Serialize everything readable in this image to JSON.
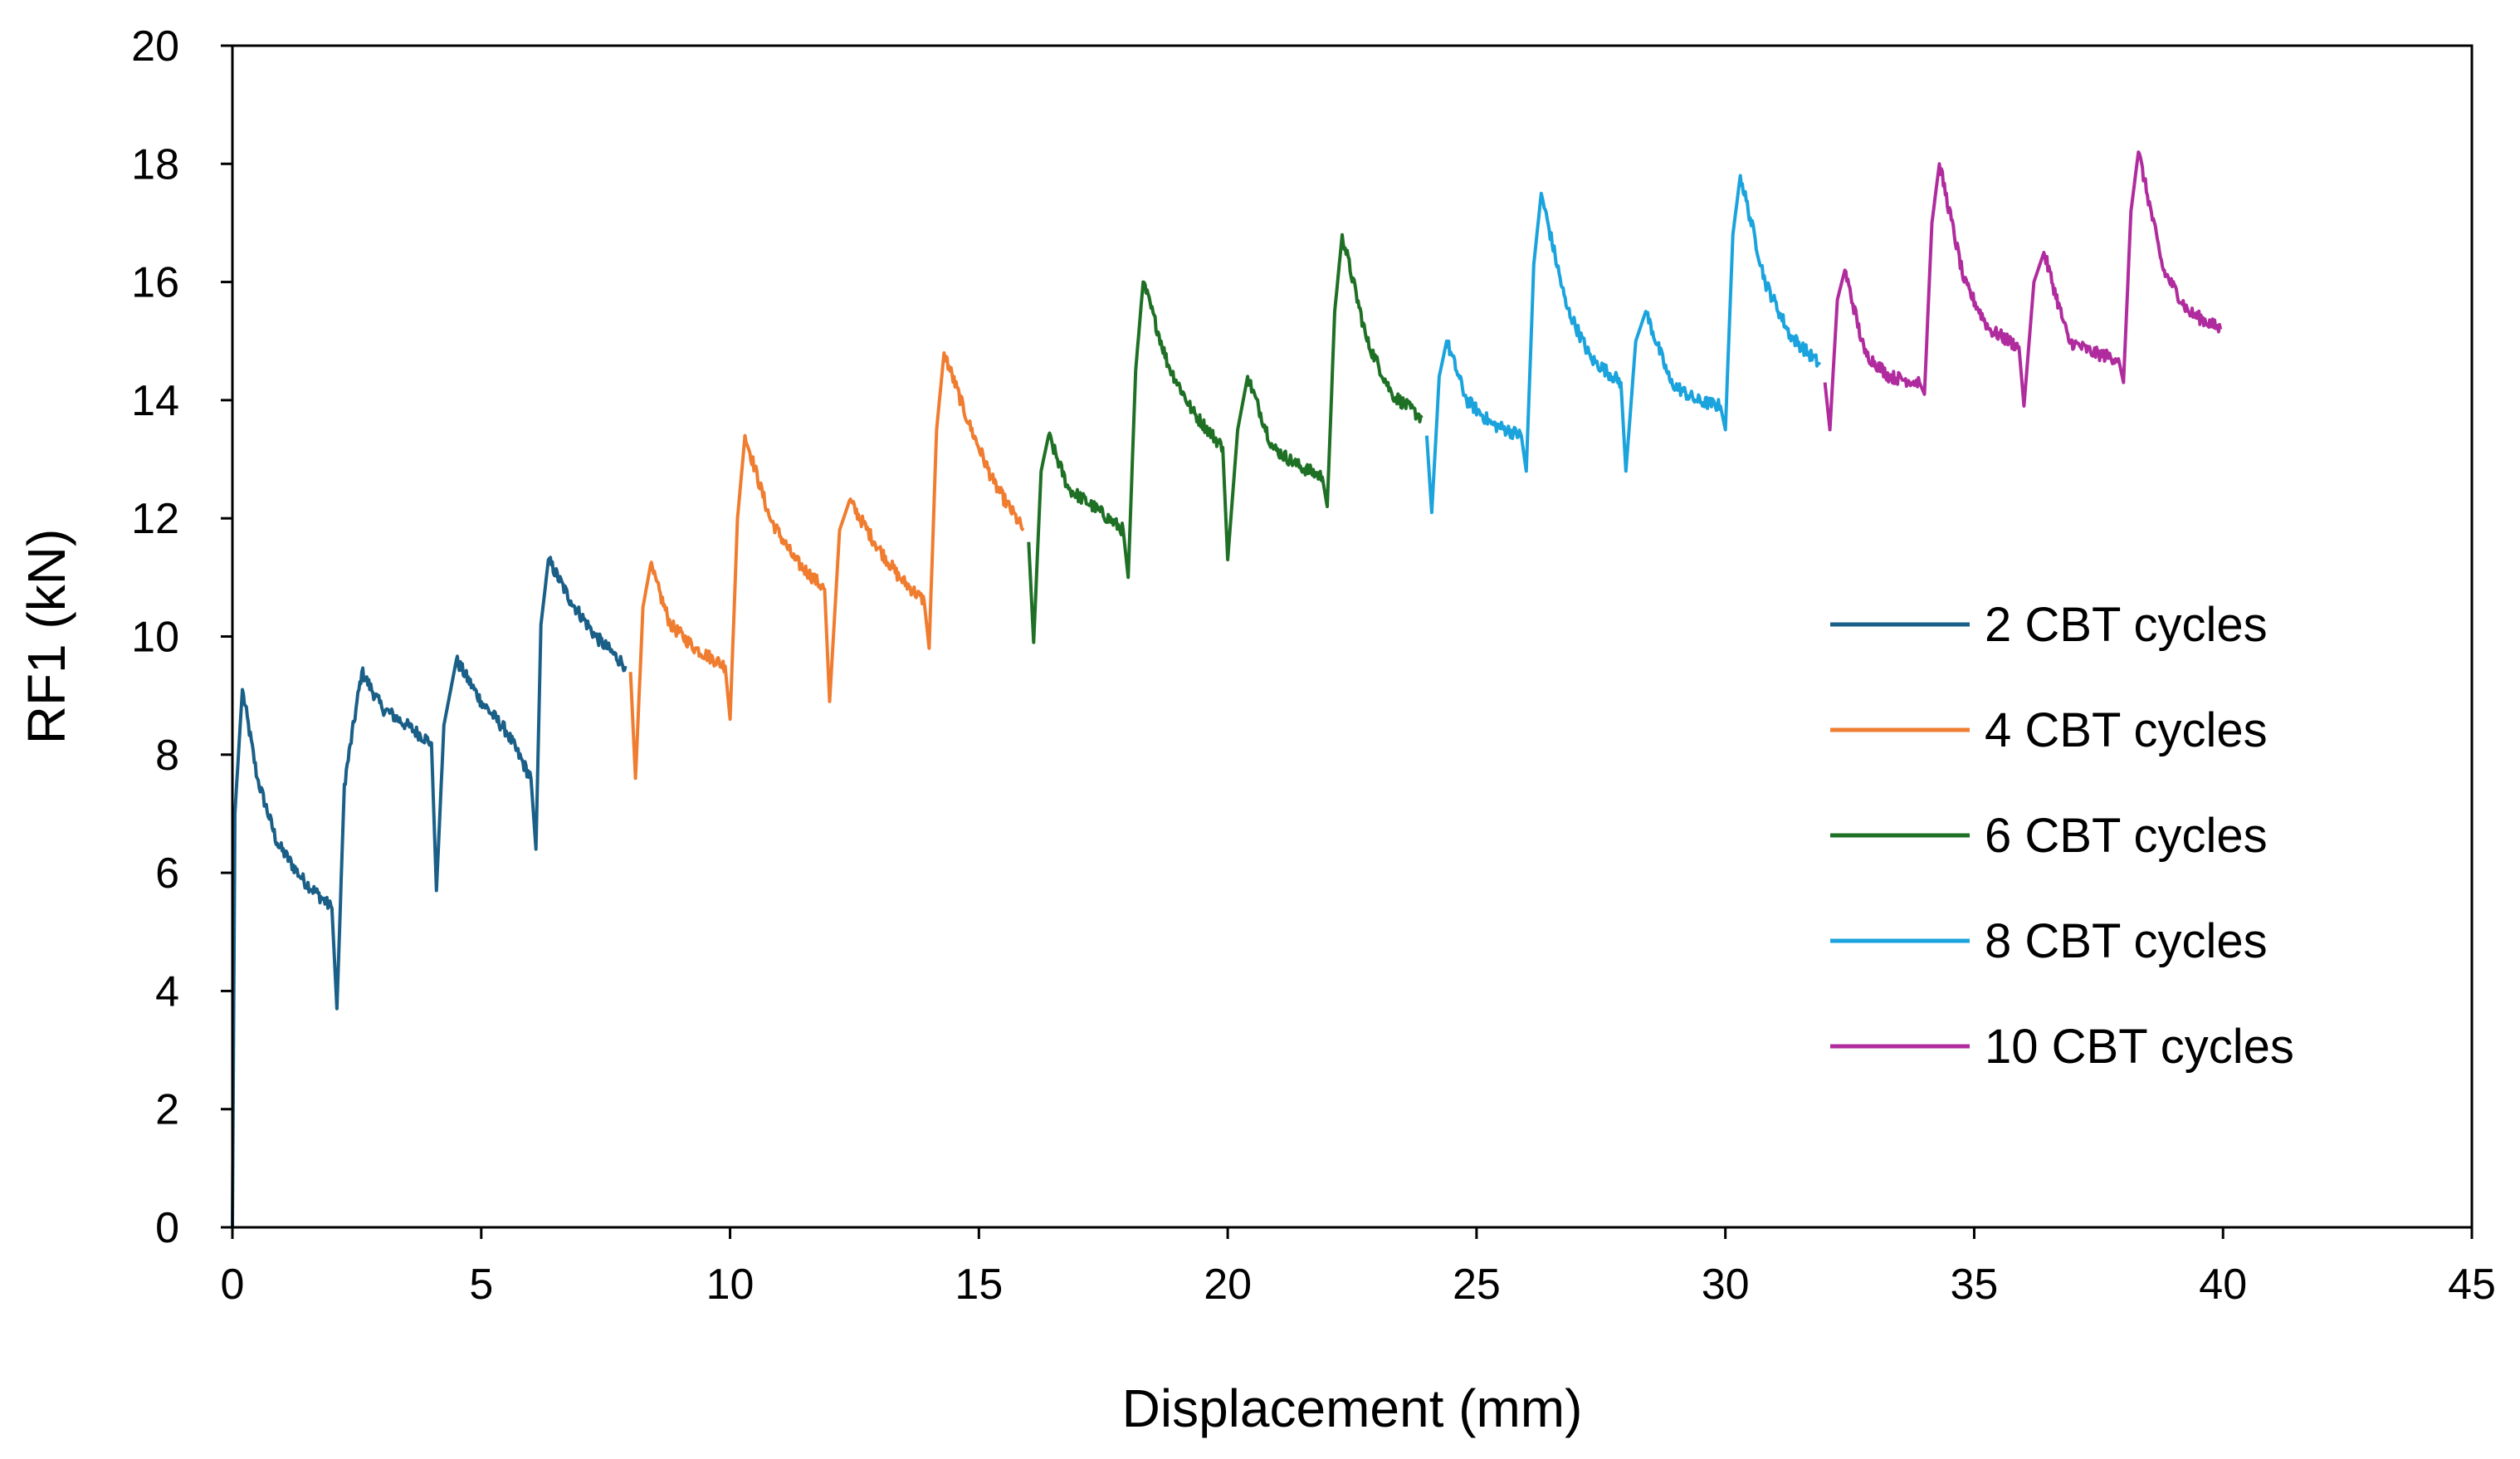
{
  "chart_data": {
    "type": "line",
    "title": "",
    "xlabel": "Displacement (mm)",
    "ylabel": "RF1 (kN)",
    "xlim": [
      0,
      45
    ],
    "ylim": [
      0,
      20
    ],
    "xticks": [
      0,
      5,
      10,
      15,
      20,
      25,
      30,
      35,
      40,
      45
    ],
    "yticks": [
      0,
      2,
      4,
      6,
      8,
      10,
      12,
      14,
      16,
      18,
      20
    ],
    "grid": false,
    "legend_position": "right",
    "series": [
      {
        "name": "2 CBT cycles",
        "color": "#1a5f87",
        "points": [
          [
            0,
            0
          ],
          [
            0.05,
            7.0
          ],
          [
            0.2,
            9.1
          ],
          [
            0.5,
            7.6
          ],
          [
            0.9,
            6.5
          ],
          [
            1.4,
            5.9
          ],
          [
            2.0,
            5.4
          ],
          [
            2.1,
            3.7
          ],
          [
            2.25,
            7.5
          ],
          [
            2.6,
            9.4
          ],
          [
            3.0,
            8.8
          ],
          [
            3.5,
            8.5
          ],
          [
            4.0,
            8.2
          ],
          [
            4.1,
            5.7
          ],
          [
            4.25,
            8.5
          ],
          [
            4.5,
            9.6
          ],
          [
            5.0,
            8.9
          ],
          [
            5.5,
            8.4
          ],
          [
            6.0,
            7.6
          ],
          [
            6.1,
            6.4
          ],
          [
            6.2,
            10.2
          ],
          [
            6.35,
            11.3
          ],
          [
            6.8,
            10.6
          ],
          [
            7.3,
            10.0
          ],
          [
            7.9,
            9.5
          ]
        ]
      },
      {
        "name": "4 CBT cycles",
        "color": "#f07c30",
        "points": [
          [
            8.0,
            9.4
          ],
          [
            8.1,
            7.6
          ],
          [
            8.25,
            10.5
          ],
          [
            8.4,
            11.2
          ],
          [
            8.8,
            10.2
          ],
          [
            9.3,
            9.8
          ],
          [
            9.9,
            9.5
          ],
          [
            10.0,
            8.6
          ],
          [
            10.15,
            12.0
          ],
          [
            10.3,
            13.4
          ],
          [
            10.8,
            12.0
          ],
          [
            11.3,
            11.3
          ],
          [
            11.9,
            10.8
          ],
          [
            12.0,
            8.9
          ],
          [
            12.2,
            11.8
          ],
          [
            12.4,
            12.3
          ],
          [
            12.9,
            11.6
          ],
          [
            13.4,
            11.0
          ],
          [
            13.9,
            10.6
          ],
          [
            14.0,
            9.8
          ],
          [
            14.15,
            13.5
          ],
          [
            14.3,
            14.8
          ],
          [
            14.8,
            13.6
          ],
          [
            15.3,
            12.6
          ],
          [
            15.9,
            11.8
          ]
        ]
      },
      {
        "name": "6 CBT cycles",
        "color": "#1e7025",
        "points": [
          [
            16.0,
            11.6
          ],
          [
            16.1,
            9.9
          ],
          [
            16.25,
            12.8
          ],
          [
            16.4,
            13.4
          ],
          [
            16.8,
            12.5
          ],
          [
            17.3,
            12.2
          ],
          [
            17.9,
            11.8
          ],
          [
            18.0,
            11.0
          ],
          [
            18.15,
            14.5
          ],
          [
            18.3,
            16.0
          ],
          [
            18.8,
            14.6
          ],
          [
            19.3,
            13.8
          ],
          [
            19.9,
            13.2
          ],
          [
            20.0,
            11.3
          ],
          [
            20.2,
            13.5
          ],
          [
            20.4,
            14.4
          ],
          [
            20.9,
            13.2
          ],
          [
            21.4,
            12.9
          ],
          [
            21.9,
            12.7
          ],
          [
            22.0,
            12.2
          ],
          [
            22.15,
            15.5
          ],
          [
            22.3,
            16.8
          ],
          [
            22.8,
            15.0
          ],
          [
            23.3,
            14.1
          ],
          [
            23.9,
            13.7
          ]
        ]
      },
      {
        "name": "8 CBT cycles",
        "color": "#1aa3dc",
        "points": [
          [
            24.0,
            13.4
          ],
          [
            24.1,
            12.1
          ],
          [
            24.25,
            14.4
          ],
          [
            24.4,
            15.0
          ],
          [
            24.8,
            14.0
          ],
          [
            25.3,
            13.6
          ],
          [
            25.9,
            13.4
          ],
          [
            26.0,
            12.8
          ],
          [
            26.15,
            16.3
          ],
          [
            26.3,
            17.5
          ],
          [
            26.8,
            15.6
          ],
          [
            27.3,
            14.7
          ],
          [
            27.9,
            14.3
          ],
          [
            28.0,
            12.8
          ],
          [
            28.2,
            15.0
          ],
          [
            28.4,
            15.5
          ],
          [
            28.9,
            14.3
          ],
          [
            29.4,
            14.0
          ],
          [
            29.9,
            13.9
          ],
          [
            30.0,
            13.5
          ],
          [
            30.15,
            16.8
          ],
          [
            30.3,
            17.8
          ],
          [
            30.8,
            16.0
          ],
          [
            31.3,
            15.1
          ],
          [
            31.9,
            14.6
          ]
        ]
      },
      {
        "name": "10 CBT cycles",
        "color": "#b02c9e",
        "points": [
          [
            32.0,
            14.3
          ],
          [
            32.1,
            13.5
          ],
          [
            32.25,
            15.7
          ],
          [
            32.4,
            16.2
          ],
          [
            32.8,
            14.8
          ],
          [
            33.3,
            14.4
          ],
          [
            33.9,
            14.3
          ],
          [
            34.0,
            14.1
          ],
          [
            34.15,
            17.0
          ],
          [
            34.3,
            18.0
          ],
          [
            34.8,
            16.0
          ],
          [
            35.3,
            15.2
          ],
          [
            35.9,
            14.9
          ],
          [
            36.0,
            13.9
          ],
          [
            36.2,
            16.0
          ],
          [
            36.4,
            16.5
          ],
          [
            36.9,
            15.0
          ],
          [
            37.4,
            14.8
          ],
          [
            37.9,
            14.7
          ],
          [
            38.0,
            14.3
          ],
          [
            38.15,
            17.2
          ],
          [
            38.3,
            18.2
          ],
          [
            38.8,
            16.2
          ],
          [
            39.3,
            15.5
          ],
          [
            39.95,
            15.2
          ]
        ]
      }
    ]
  }
}
